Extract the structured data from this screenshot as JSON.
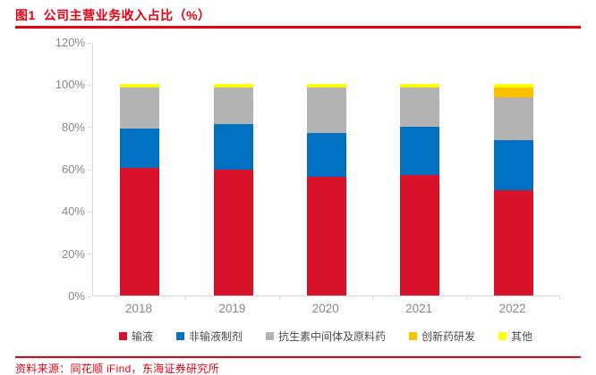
{
  "header": {
    "title": "图1  公司主营业务收入占比（%）"
  },
  "footer": {
    "source": "资料来源：同花顺 iFind，东海证券研究所"
  },
  "colors": {
    "accent": "#e60012",
    "axis": "#d9d9d9",
    "tick_text": "#898989",
    "legend_text": "#4d4d4d"
  },
  "chart_data": {
    "type": "bar",
    "stacked": true,
    "title": "公司主营业务收入占比（%）",
    "xlabel": "",
    "ylabel": "",
    "categories": [
      "2018",
      "2019",
      "2020",
      "2021",
      "2022"
    ],
    "series": [
      {
        "name": "输液",
        "color": "#d9122b",
        "values": [
          60.5,
          59.5,
          56.0,
          57.0,
          50.0
        ]
      },
      {
        "name": "非输液制剂",
        "color": "#0070c0",
        "values": [
          18.5,
          21.5,
          21.0,
          23.0,
          23.5
        ]
      },
      {
        "name": "抗生素中间体及原料药",
        "color": "#b3b3b3",
        "values": [
          19.5,
          17.5,
          21.5,
          18.5,
          20.5
        ]
      },
      {
        "name": "创新药研发",
        "color": "#ffc000",
        "values": [
          0,
          0,
          0,
          0,
          4.5
        ]
      },
      {
        "name": "其他",
        "color": "#ffff00",
        "values": [
          1.5,
          1.5,
          1.5,
          1.5,
          1.5
        ]
      }
    ],
    "ylim": [
      0,
      120
    ],
    "yticks": [
      "0%",
      "20%",
      "40%",
      "60%",
      "80%",
      "100%",
      "120%"
    ],
    "grid": false,
    "legend_position": "bottom"
  }
}
